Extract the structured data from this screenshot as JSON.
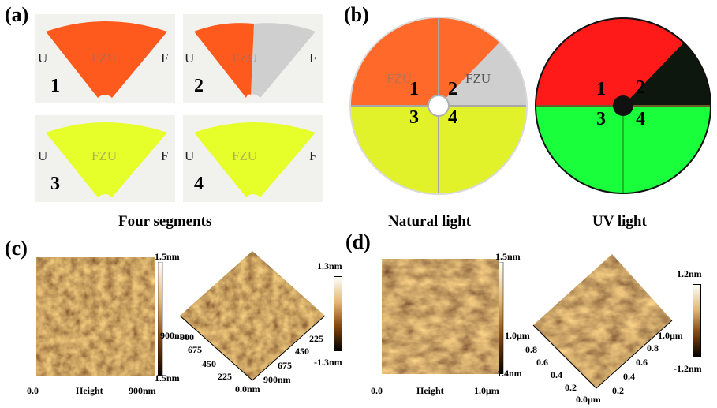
{
  "panel_a": {
    "label": "(a)",
    "caption": "Four segments",
    "segments": [
      {
        "num": "1",
        "watermark": "FZU",
        "edge_left": "U",
        "edge_right": "F",
        "color": "#ff5a1e"
      },
      {
        "num": "2",
        "watermark": "FZU",
        "edge_left": "U",
        "edge_right": "F",
        "color": "#ff5a1e"
      },
      {
        "num": "3",
        "watermark": "FZU",
        "edge_left": "U",
        "edge_right": "F",
        "color": "#e6ff2a"
      },
      {
        "num": "4",
        "watermark": "FZU",
        "edge_left": "U",
        "edge_right": "F",
        "color": "#e6ff2a"
      }
    ]
  },
  "panel_b": {
    "label": "(b)",
    "natural_caption": "Natural light",
    "uv_caption": "UV light",
    "natural_nums": [
      "1",
      "2",
      "3",
      "4"
    ],
    "uv_nums": [
      "1",
      "2",
      "3",
      "4"
    ],
    "watermark": "FZU",
    "colors": {
      "orange": "#ff6a2a",
      "yellow": "#e2f22a",
      "red": "#ff1a1a",
      "green": "#1aff3c",
      "dark": "#0d170d"
    }
  },
  "panel_c": {
    "label": "(c)",
    "map2d": {
      "max": "1.5nm",
      "mid": "900nm",
      "min": "1.5nm",
      "x_start": "0.0",
      "x_label": "Height",
      "x_end": "900nm"
    },
    "map3d": {
      "cbar_max": "1.3nm",
      "cbar_min": "-1.3nm",
      "left_ticks": [
        "900",
        "675",
        "450",
        "225"
      ],
      "right_ticks": [
        "225",
        "450",
        "675",
        "900nm"
      ],
      "origin": "0.0nm"
    }
  },
  "panel_d": {
    "label": "(d)",
    "map2d": {
      "max": "1.5nm",
      "mid": "1.0μm",
      "min": "1.4nm",
      "x_start": "0.0",
      "x_label": "Height",
      "x_end": "1.0μm"
    },
    "map3d": {
      "cbar_max": "1.2nm",
      "cbar_min": "-1.2nm",
      "left_ticks": [
        "0.8",
        "0.6",
        "0.4",
        "0.2",
        "0.0μm"
      ],
      "right_ticks": [
        "0.2",
        "0.4",
        "0.6",
        "0.8",
        "1.0μm"
      ]
    }
  }
}
